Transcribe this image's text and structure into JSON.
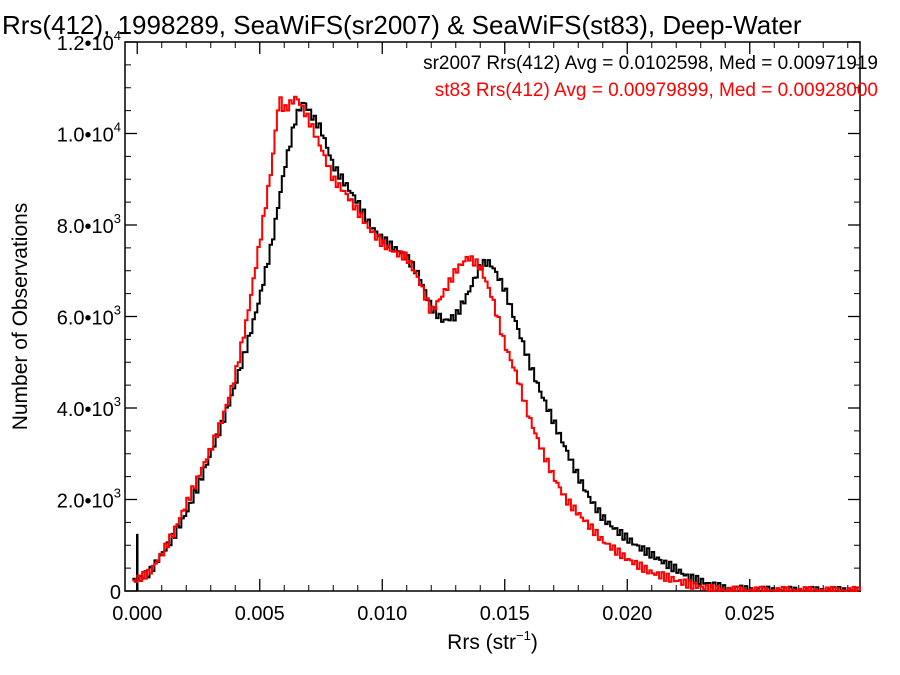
{
  "chart_data": {
    "type": "line",
    "title": "Rrs(412), 1998289, SeaWiFS(sr2007) & SeaWiFS(st83), Deep-Water",
    "xlabel": "Rrs (str",
    "xlabel_sup": "−1",
    "xlabel_close": ")",
    "ylabel": "Number of Observations",
    "xlim": [
      -0.0005,
      0.0295
    ],
    "ylim": [
      0,
      12000
    ],
    "grid": false,
    "x_ticks": [
      {
        "value": 0.0,
        "label": "0.000"
      },
      {
        "value": 0.005,
        "label": "0.005"
      },
      {
        "value": 0.01,
        "label": "0.010"
      },
      {
        "value": 0.015,
        "label": "0.015"
      },
      {
        "value": 0.02,
        "label": "0.020"
      },
      {
        "value": 0.025,
        "label": "0.025"
      }
    ],
    "y_ticks": [
      {
        "value": 0,
        "mant": "0",
        "exp": ""
      },
      {
        "value": 2000,
        "mant": "2.0•10",
        "exp": "3"
      },
      {
        "value": 4000,
        "mant": "4.0•10",
        "exp": "3"
      },
      {
        "value": 6000,
        "mant": "6.0•10",
        "exp": "3"
      },
      {
        "value": 8000,
        "mant": "8.0•10",
        "exp": "3"
      },
      {
        "value": 10000,
        "mant": "1.0•10",
        "exp": "4"
      },
      {
        "value": 12000,
        "mant": "1.2•10",
        "exp": "4"
      }
    ],
    "annotations": [
      {
        "text": "sr2007 Rrs(412) Avg = 0.0102598, Med = 0.00971919",
        "color": "#000000"
      },
      {
        "text": "st83 Rrs(412) Avg = 0.00979899, Med = 0.00928000",
        "color": "#ff0000"
      }
    ],
    "series": [
      {
        "color": "#000000",
        "spike": {
          "x": 0.0,
          "y": 1250
        },
        "x": [
          -0.0002,
          0.0005,
          0.001,
          0.0015,
          0.002,
          0.0025,
          0.003,
          0.0035,
          0.004,
          0.0045,
          0.005,
          0.0055,
          0.006,
          0.0065,
          0.0068,
          0.007,
          0.0075,
          0.008,
          0.0085,
          0.009,
          0.0095,
          0.01,
          0.0105,
          0.011,
          0.0115,
          0.012,
          0.0125,
          0.013,
          0.0135,
          0.014,
          0.0143,
          0.0145,
          0.015,
          0.0155,
          0.016,
          0.0165,
          0.017,
          0.0175,
          0.018,
          0.0185,
          0.019,
          0.0195,
          0.02,
          0.0205,
          0.021,
          0.0215,
          0.022,
          0.0225,
          0.023,
          0.0235,
          0.024,
          0.025,
          0.026,
          0.028,
          0.0295
        ],
        "y": [
          200,
          400,
          800,
          1200,
          1700,
          2300,
          3000,
          3700,
          4500,
          5400,
          6400,
          7600,
          9200,
          10400,
          10700,
          10500,
          10100,
          9300,
          8900,
          8500,
          8000,
          7700,
          7500,
          7300,
          6900,
          6200,
          5900,
          6000,
          6500,
          7100,
          7200,
          7100,
          6600,
          5800,
          5000,
          4300,
          3700,
          3100,
          2500,
          2000,
          1600,
          1350,
          1150,
          950,
          800,
          620,
          480,
          300,
          220,
          120,
          50,
          20,
          5,
          0,
          0
        ]
      },
      {
        "color": "#ff0000",
        "x": [
          -0.0002,
          0.0005,
          0.001,
          0.0015,
          0.002,
          0.0025,
          0.003,
          0.0035,
          0.004,
          0.0045,
          0.005,
          0.0055,
          0.0058,
          0.006,
          0.0065,
          0.007,
          0.0075,
          0.008,
          0.0085,
          0.009,
          0.0095,
          0.01,
          0.0105,
          0.011,
          0.0115,
          0.012,
          0.0125,
          0.013,
          0.0135,
          0.014,
          0.0145,
          0.015,
          0.0155,
          0.016,
          0.0165,
          0.017,
          0.0175,
          0.018,
          0.0185,
          0.019,
          0.0195,
          0.02,
          0.0205,
          0.021,
          0.0215,
          0.022,
          0.0225,
          0.023,
          0.0235,
          0.024,
          0.025,
          0.026,
          0.028,
          0.0295
        ],
        "y": [
          200,
          400,
          800,
          1300,
          1900,
          2500,
          3100,
          3800,
          4700,
          6000,
          7600,
          9300,
          10800,
          10500,
          10800,
          10300,
          9700,
          9000,
          8700,
          8300,
          7900,
          7600,
          7400,
          7300,
          6800,
          6100,
          6500,
          7000,
          7300,
          7100,
          6400,
          5400,
          4700,
          3800,
          3100,
          2500,
          2000,
          1700,
          1400,
          1100,
          900,
          700,
          550,
          400,
          320,
          230,
          150,
          90,
          40,
          15,
          5,
          0,
          0,
          0
        ]
      }
    ]
  }
}
